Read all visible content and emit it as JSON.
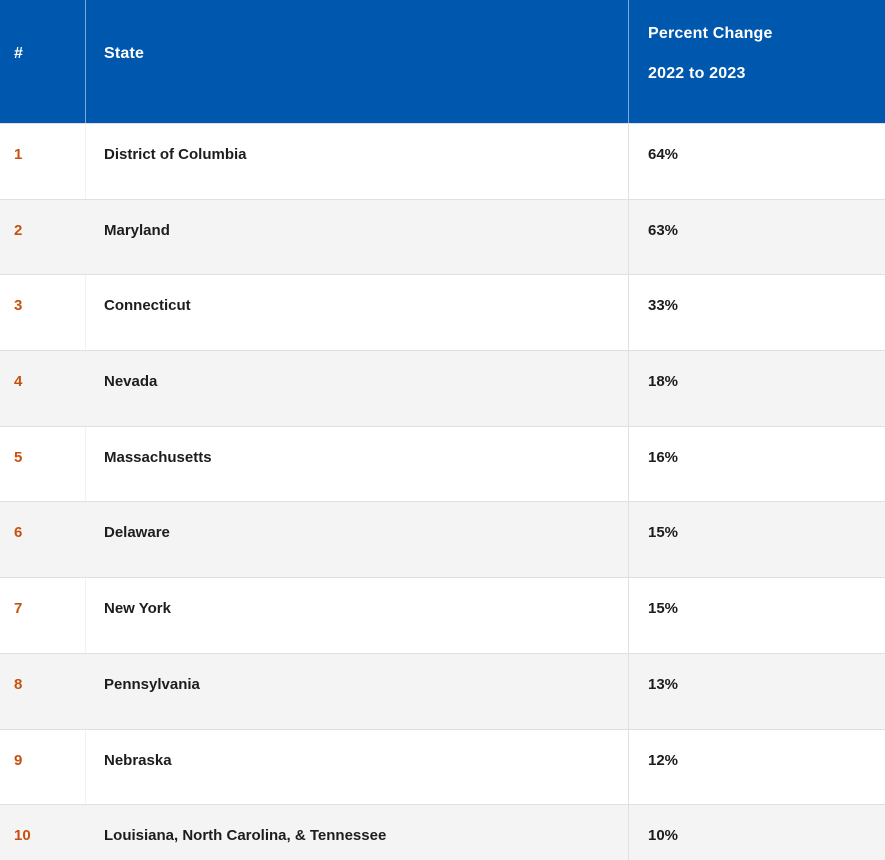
{
  "table": {
    "header": {
      "rank_label": "#",
      "state_label": "State",
      "percent_label_line1": "Percent Change",
      "percent_label_line2": "2022 to 2023"
    },
    "rows": [
      {
        "rank": "1",
        "state": "District of Columbia",
        "percent": "64%"
      },
      {
        "rank": "2",
        "state": "Maryland",
        "percent": "63%"
      },
      {
        "rank": "3",
        "state": "Connecticut",
        "percent": "33%"
      },
      {
        "rank": "4",
        "state": "Nevada",
        "percent": "18%"
      },
      {
        "rank": "5",
        "state": "Massachusetts",
        "percent": "16%"
      },
      {
        "rank": "6",
        "state": "Delaware",
        "percent": "15%"
      },
      {
        "rank": "7",
        "state": "New York",
        "percent": "15%"
      },
      {
        "rank": "8",
        "state": "Pennsylvania",
        "percent": "13%"
      },
      {
        "rank": "9",
        "state": "Nebraska",
        "percent": "12%"
      },
      {
        "rank": "10",
        "state": "Louisiana, North Carolina, & Tennessee",
        "percent": "10%"
      }
    ]
  },
  "colors": {
    "header_background": "#0057AE",
    "header_text": "#FFFFFF",
    "rank_accent": "#C8500F",
    "body_text": "#1D1D1D",
    "row_alternate_background": "#F4F4F4",
    "row_border": "#E0E0E0"
  }
}
